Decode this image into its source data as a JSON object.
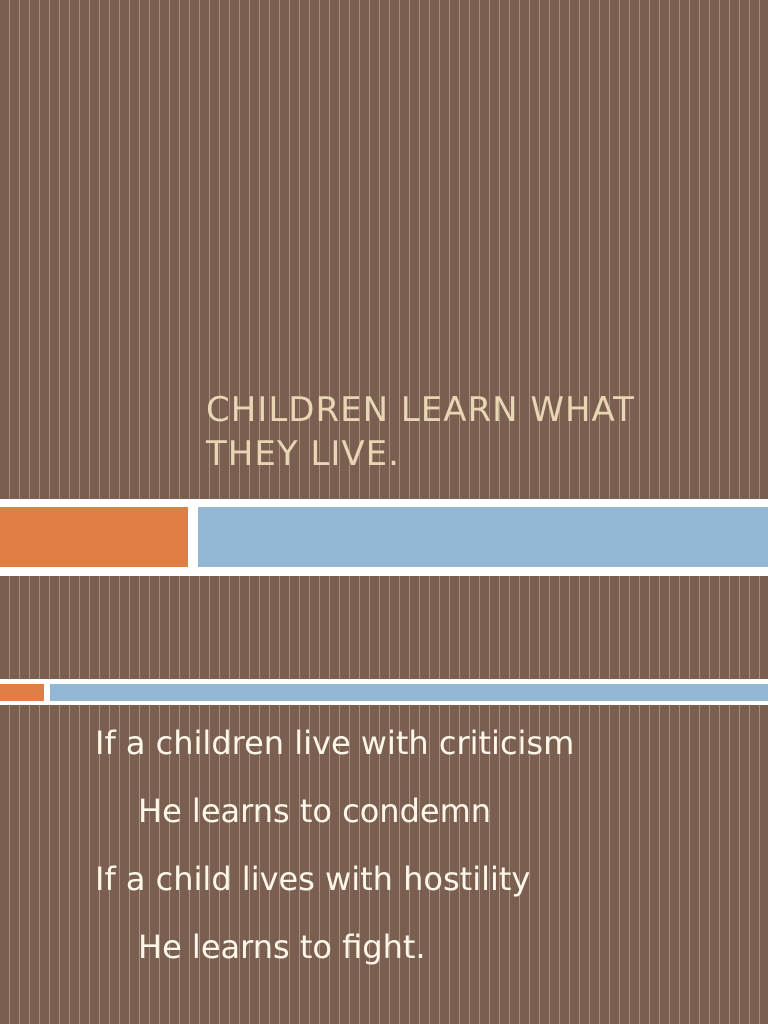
{
  "slide": {
    "title_lines": [
      "CHILDREN LEARN WHAT",
      "THEY LIVE."
    ],
    "body_lines": [
      "If a children live with criticism",
      "He learns to condemn",
      "If a child lives with hostility",
      "He learns to fight."
    ]
  },
  "colors": {
    "background": "#7a5e50",
    "stripe": "#a58d80",
    "title_text": "#e7d5b3",
    "body_text": "#fdf7ea",
    "accent_orange": "#df7f45",
    "accent_blue": "#93b6d2"
  }
}
